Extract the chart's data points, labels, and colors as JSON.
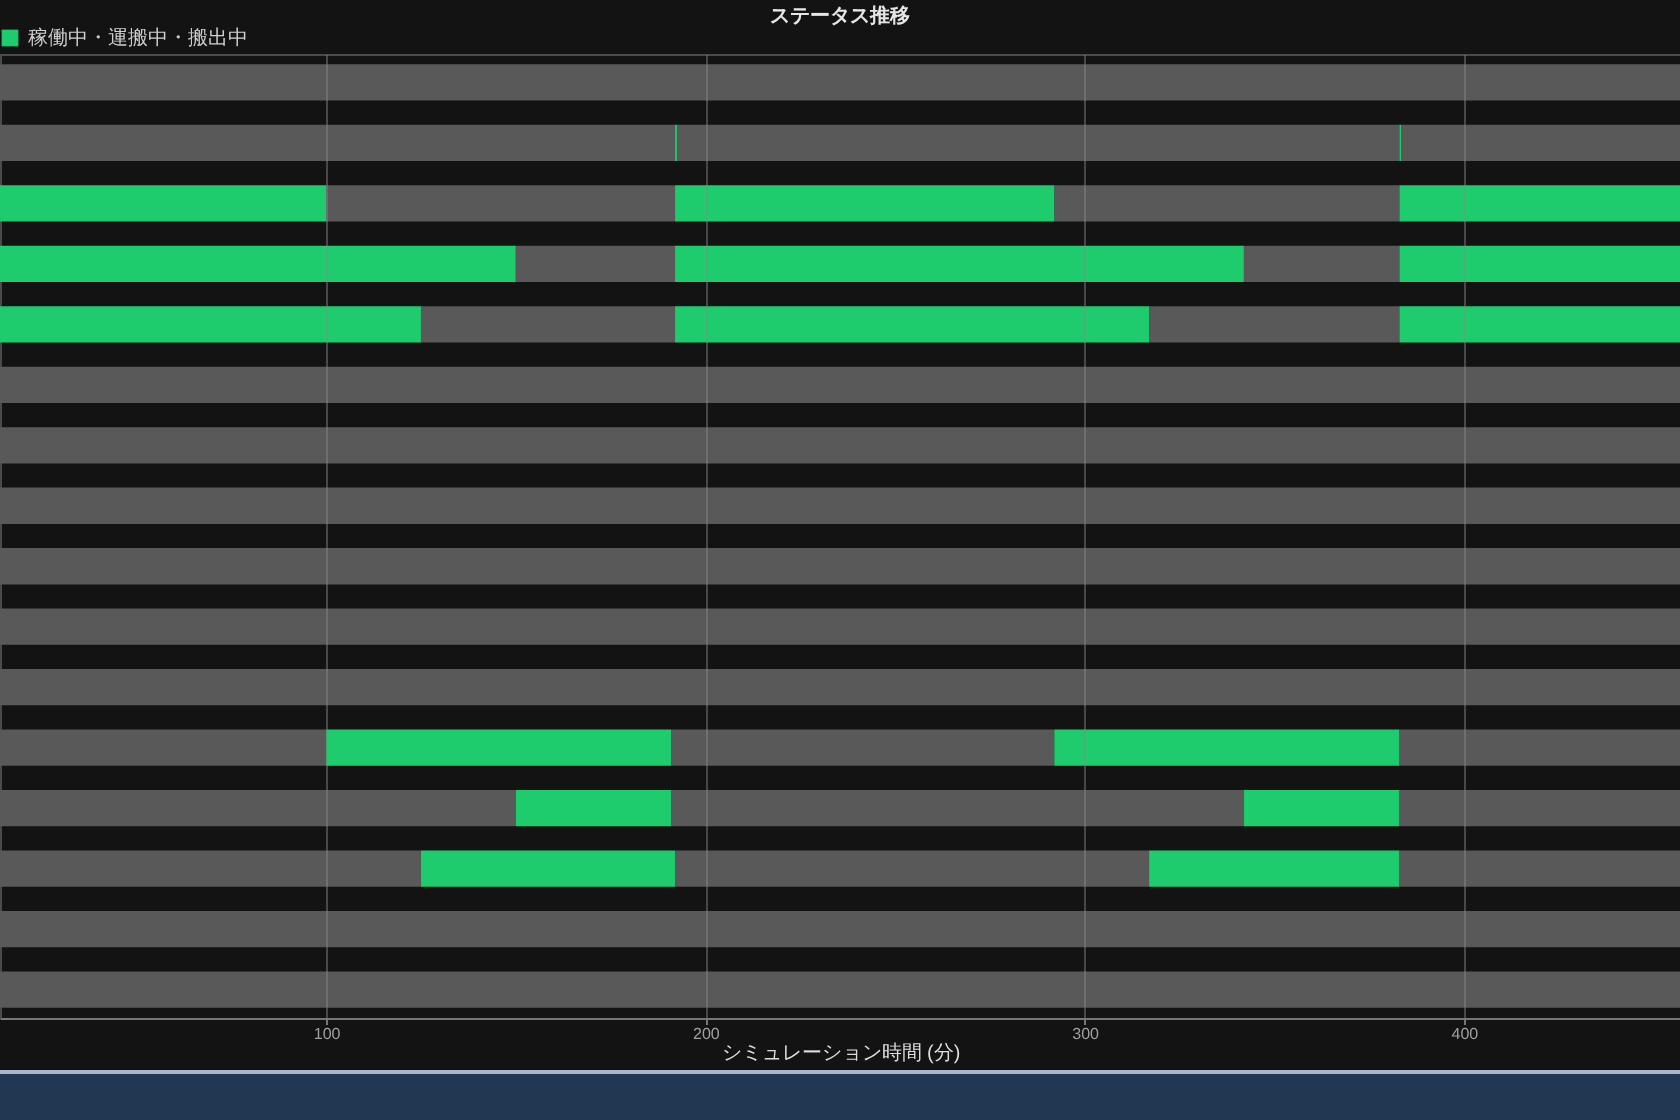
{
  "chart_data": {
    "type": "bar",
    "orientation": "horizontal",
    "title": "ステータス推移",
    "xlabel": "シミュレーション時間 (分)",
    "categories": [
      null,
      null,
      null,
      null,
      null,
      null,
      null,
      null,
      null,
      null,
      null,
      null,
      null,
      null,
      null,
      null
    ],
    "series": [
      {
        "color": "#595959",
        "base": [
          14,
          14,
          100,
          150,
          125,
          14,
          14,
          14,
          14,
          14,
          14,
          14,
          14,
          14,
          14,
          14
        ],
        "values": [
          443,
          178,
          92,
          42,
          67,
          443,
          443,
          443,
          443,
          443,
          443,
          86,
          136,
          111,
          443,
          443
        ]
      },
      {
        "color": "#595959",
        "base": [
          null,
          192.5,
          292,
          342,
          317,
          null,
          null,
          null,
          null,
          null,
          null,
          191,
          191,
          192,
          null,
          null
        ],
        "values": [
          null,
          190.5,
          91,
          41,
          66,
          null,
          null,
          null,
          null,
          null,
          null,
          101,
          151,
          125,
          null,
          null
        ]
      },
      {
        "color": "#595959",
        "base": [
          null,
          383.5,
          null,
          null,
          null,
          null,
          null,
          null,
          null,
          null,
          null,
          383,
          383,
          383,
          null,
          null
        ],
        "values": [
          null,
          73.5,
          null,
          null,
          null,
          null,
          null,
          null,
          null,
          null,
          null,
          74,
          74,
          74,
          null,
          null
        ]
      },
      {
        "name": "稼働中・運搬中・搬出中",
        "color": "#1ecc6e",
        "base": [
          null,
          null,
          14,
          14,
          14,
          null,
          null,
          null,
          null,
          null,
          null,
          100,
          150,
          125,
          null,
          null
        ],
        "values": [
          null,
          null,
          86,
          136,
          111,
          null,
          null,
          null,
          null,
          null,
          null,
          91,
          41,
          67,
          null,
          null
        ]
      },
      {
        "color": "#1ecc6e",
        "base": [
          null,
          192,
          192,
          192,
          192,
          null,
          null,
          null,
          null,
          null,
          null,
          292,
          342,
          317,
          null,
          null
        ],
        "values": [
          null,
          0.5,
          100,
          150,
          125,
          null,
          null,
          null,
          null,
          null,
          null,
          91,
          41,
          66,
          null,
          null
        ]
      },
      {
        "color": "#1ecc6e",
        "base": [
          null,
          383,
          383,
          383,
          383,
          null,
          null,
          null,
          null,
          null,
          null,
          null,
          null,
          null,
          null,
          null
        ],
        "values": [
          null,
          0.5,
          74,
          74,
          74,
          null,
          null,
          null,
          null,
          null,
          null,
          null,
          null,
          null,
          null,
          null
        ]
      }
    ],
    "xlim": [
      14,
      457
    ],
    "xticks": [
      100,
      200,
      300,
      400
    ],
    "grid": "x",
    "legend": "top left",
    "tick_labels": "x"
  }
}
